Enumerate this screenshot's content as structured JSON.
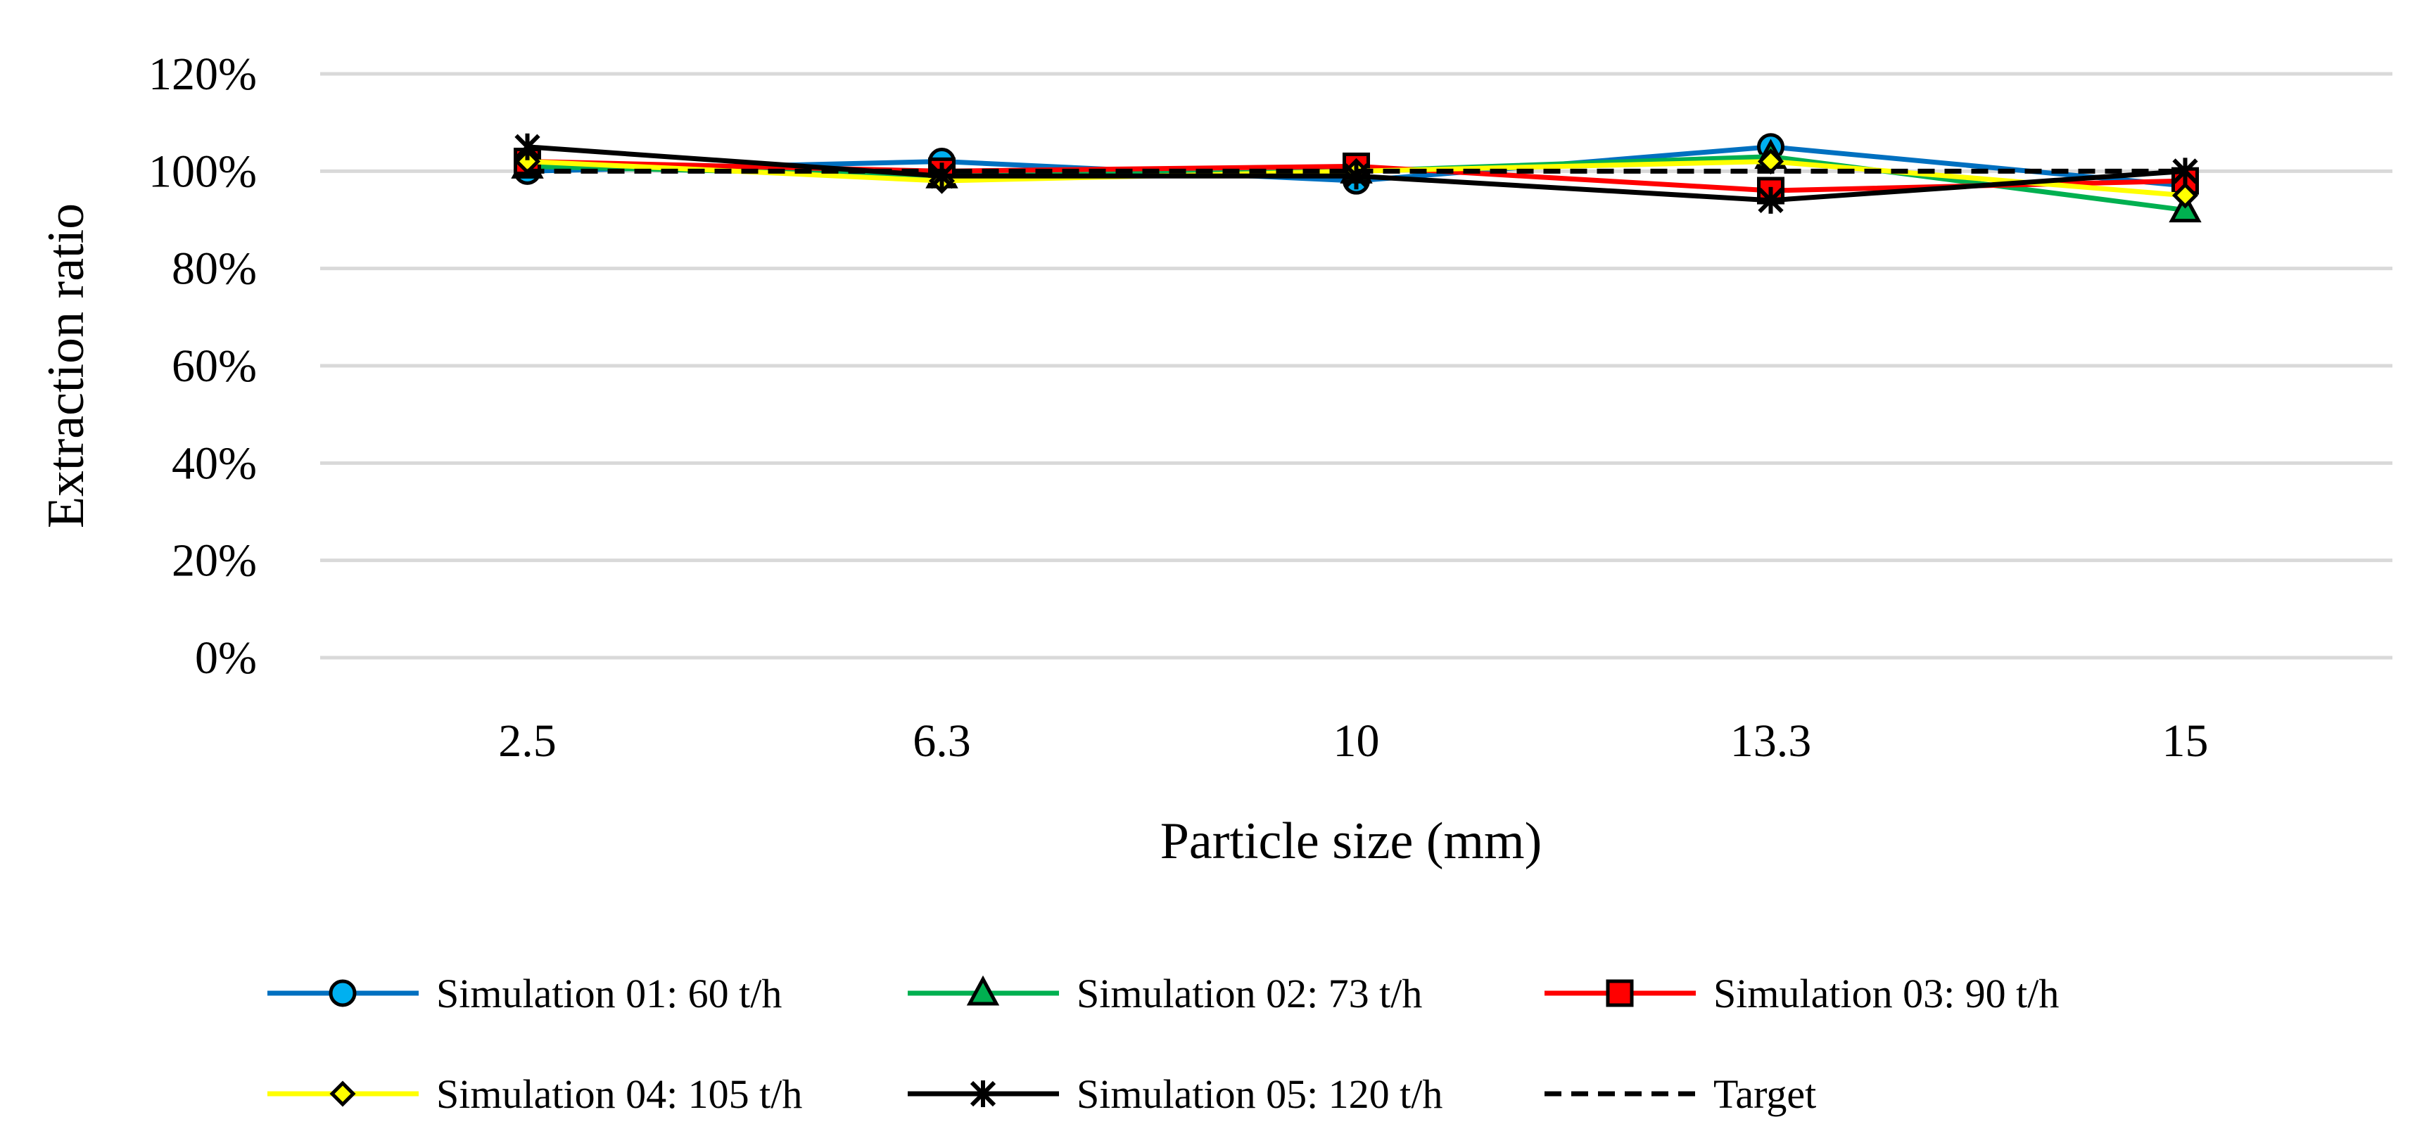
{
  "chart_data": {
    "type": "line",
    "title": "",
    "xlabel": "Particle size (mm)",
    "ylabel": "Extraction ratio",
    "categories": [
      "2.5",
      "6.3",
      "10",
      "13.3",
      "15"
    ],
    "ylim": [
      0,
      1.2
    ],
    "yticks": [
      0,
      0.2,
      0.4,
      0.6,
      0.8,
      1.0,
      1.2
    ],
    "ytick_labels": [
      "0%",
      "20%",
      "40%",
      "60%",
      "80%",
      "100%",
      "120%"
    ],
    "grid": true,
    "legend_position": "bottom",
    "series": [
      {
        "name": "Simulation 01: 60 t/h",
        "color": "#0070C0",
        "marker": "circle",
        "marker_fill": "#00B0F0",
        "dashed": false,
        "values": [
          1.0,
          1.02,
          0.98,
          1.05,
          0.97
        ]
      },
      {
        "name": "Simulation 02: 73 t/h",
        "color": "#00B050",
        "marker": "triangle",
        "marker_fill": "#00B050",
        "dashed": false,
        "values": [
          1.01,
          0.99,
          1.0,
          1.03,
          0.92
        ]
      },
      {
        "name": "Simulation 03: 90 t/h",
        "color": "#FF0000",
        "marker": "square",
        "marker_fill": "#FF0000",
        "dashed": false,
        "values": [
          1.02,
          1.0,
          1.01,
          0.96,
          0.98
        ]
      },
      {
        "name": "Simulation 04: 105 t/h",
        "color": "#FFFF00",
        "marker": "diamond",
        "marker_fill": "#FFFF00",
        "dashed": false,
        "values": [
          1.02,
          0.98,
          1.0,
          1.02,
          0.95
        ]
      },
      {
        "name": "Simulation 05: 120 t/h",
        "color": "#000000",
        "marker": "x",
        "marker_fill": "#000000",
        "dashed": false,
        "values": [
          1.05,
          0.99,
          0.99,
          0.94,
          1.0
        ]
      },
      {
        "name": "Target",
        "color": "#000000",
        "marker": "none",
        "marker_fill": "",
        "dashed": true,
        "values": [
          1.0,
          1.0,
          1.0,
          1.0,
          1.0
        ]
      }
    ]
  }
}
